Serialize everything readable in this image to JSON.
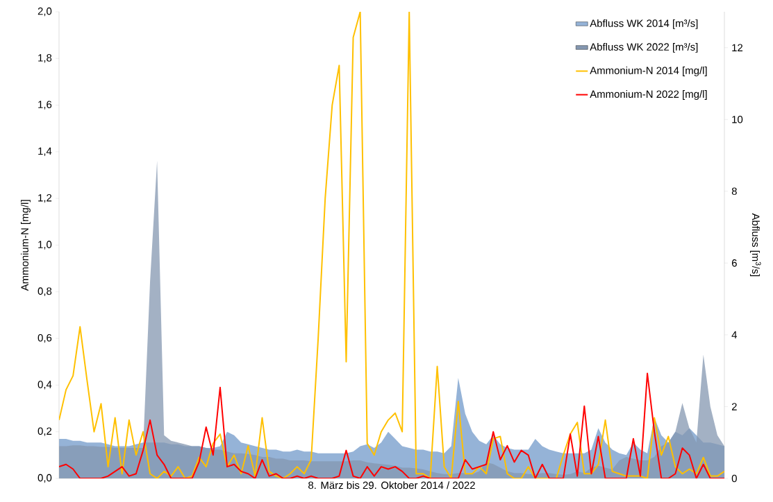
{
  "chart_data": {
    "type": "line",
    "xlabel": "8. März bis 29. Oktober 2014 / 2022",
    "ylabel": "Ammonium-N [mg/l]",
    "y2label": "Abfluss [m$^{3}$/s]",
    "categories": [
      null,
      null,
      null,
      null,
      null,
      null,
      null,
      null,
      null,
      null,
      null,
      null,
      null,
      null,
      null,
      null,
      null,
      null,
      null,
      null,
      null,
      null,
      null,
      null,
      null,
      null,
      null,
      null,
      null,
      null,
      null,
      null,
      null,
      null,
      null,
      null,
      null,
      null,
      null,
      null,
      null,
      null,
      null,
      null,
      null,
      null,
      null,
      null,
      null,
      null,
      null,
      null,
      null,
      null,
      null,
      null,
      null,
      null,
      null,
      null,
      null,
      null,
      null,
      null,
      null,
      null,
      null,
      null,
      null,
      null,
      null,
      null,
      null,
      null,
      null,
      null,
      null,
      null,
      null,
      null,
      null,
      null,
      null,
      null,
      null,
      null,
      null,
      null,
      null,
      null,
      null,
      null,
      null,
      null,
      null,
      null
    ],
    "series": [
      {
        "name": "Abfluss WK 2014 [m³/s]",
        "type": "area",
        "axis": "y2",
        "color": "#95b3d7",
        "values": [
          1.1,
          1.1,
          1.05,
          1.05,
          1.0,
          1.0,
          1.0,
          0.95,
          0.9,
          0.9,
          0.9,
          0.95,
          1.0,
          1.0,
          1.0,
          1.0,
          0.95,
          0.95,
          0.9,
          0.9,
          0.9,
          0.85,
          0.85,
          0.9,
          1.3,
          1.2,
          1.0,
          0.95,
          0.9,
          0.85,
          0.8,
          0.8,
          0.75,
          0.75,
          0.8,
          0.75,
          0.75,
          0.7,
          0.7,
          0.7,
          0.7,
          0.7,
          0.75,
          0.9,
          0.95,
          0.85,
          1.0,
          1.3,
          1.1,
          0.9,
          0.85,
          0.8,
          0.8,
          0.75,
          0.75,
          0.7,
          0.9,
          2.8,
          1.8,
          1.3,
          1.05,
          0.95,
          1.2,
          0.95,
          0.85,
          0.8,
          0.8,
          0.8,
          1.1,
          0.9,
          0.8,
          0.75,
          0.7,
          0.7,
          0.7,
          0.7,
          0.8,
          1.4,
          1.0,
          0.8,
          0.7,
          0.65,
          1.0,
          0.8,
          0.7,
          1.7,
          1.2,
          1.0,
          1.3,
          1.2,
          1.4,
          1.2,
          1.0,
          1.0,
          0.95,
          0.9
        ]
      },
      {
        "name": "Abfluss WK 2022 [m³/s]",
        "type": "area",
        "axis": "y2",
        "color": "#8497b0",
        "values": [
          0.9,
          0.9,
          0.92,
          0.92,
          0.9,
          0.9,
          0.88,
          0.88,
          0.85,
          0.85,
          0.85,
          0.85,
          0.85,
          5.5,
          8.85,
          1.2,
          1.05,
          1.0,
          0.95,
          0.9,
          0.9,
          0.85,
          0.8,
          0.8,
          0.75,
          0.7,
          0.7,
          0.68,
          0.65,
          0.6,
          0.6,
          0.55,
          0.55,
          0.5,
          0.5,
          0.5,
          0.48,
          0.48,
          0.48,
          0.48,
          0.48,
          0.48,
          0.5,
          0.5,
          0.45,
          0.42,
          0.4,
          0.38,
          0.35,
          0.3,
          0.3,
          0.28,
          0.25,
          0.2,
          0.15,
          0.12,
          0.12,
          0.15,
          0.15,
          0.12,
          0.2,
          0.45,
          0.4,
          0.3,
          0.2,
          0.15,
          0.15,
          0.12,
          0.12,
          0.15,
          0.15,
          0.12,
          0.1,
          0.12,
          0.2,
          0.15,
          0.3,
          0.35,
          0.3,
          0.25,
          0.5,
          0.6,
          0.55,
          0.5,
          0.5,
          0.6,
          0.9,
          1.0,
          1.3,
          2.1,
          1.4,
          1.0,
          3.45,
          2.0,
          1.2,
          0.9
        ]
      },
      {
        "name": "Ammonium-N 2014 [mg/l]",
        "color": "#ffc000",
        "values": [
          0.25,
          0.38,
          0.44,
          0.65,
          0.42,
          0.2,
          0.32,
          0.05,
          0.26,
          0.02,
          0.25,
          0.1,
          0.2,
          0.02,
          0.0,
          0.03,
          0.01,
          0.05,
          0.0,
          0.01,
          0.09,
          0.05,
          0.15,
          0.19,
          0.05,
          0.1,
          0.02,
          0.14,
          0.01,
          0.26,
          0.03,
          0.01,
          0.0,
          0.02,
          0.05,
          0.02,
          0.08,
          0.6,
          1.2,
          1.6,
          1.77,
          0.5,
          1.89,
          2.0,
          0.15,
          0.1,
          0.2,
          0.25,
          0.28,
          0.2,
          2.0,
          0.02,
          0.02,
          0.0,
          0.48,
          0.05,
          0.0,
          0.33,
          0.02,
          0.02,
          0.05,
          0.02,
          0.17,
          0.18,
          0.02,
          0.0,
          0.0,
          0.05,
          0.0,
          0.0,
          0.0,
          0.0,
          0.1,
          0.19,
          0.24,
          0.02,
          0.02,
          0.06,
          0.25,
          0.03,
          0.02,
          0.01,
          0.01,
          0.01,
          0.0,
          0.26,
          0.1,
          0.18,
          0.05,
          0.02,
          0.04,
          0.02,
          0.09,
          0.01,
          0.01,
          0.03
        ]
      },
      {
        "name": "Ammonium-N 2022 [mg/l]",
        "color": "#ff0000",
        "values": [
          0.05,
          0.06,
          0.04,
          0.0,
          0.0,
          0.0,
          0.0,
          0.01,
          0.03,
          0.05,
          0.01,
          0.02,
          0.12,
          0.25,
          0.1,
          0.06,
          0.0,
          0.0,
          0.0,
          0.0,
          0.07,
          0.22,
          0.1,
          0.39,
          0.05,
          0.06,
          0.03,
          0.02,
          0.0,
          0.08,
          0.01,
          0.02,
          0.0,
          0.0,
          0.01,
          0.0,
          0.01,
          0.0,
          0.0,
          0.0,
          0.01,
          0.12,
          0.01,
          0.0,
          0.05,
          0.01,
          0.05,
          0.04,
          0.05,
          0.03,
          0.0,
          0.0,
          0.01,
          0.0,
          0.0,
          0.0,
          0.0,
          0.0,
          0.08,
          0.04,
          0.05,
          0.06,
          0.2,
          0.08,
          0.14,
          0.07,
          0.12,
          0.1,
          0.0,
          0.06,
          0.0,
          0.0,
          0.0,
          0.19,
          0.01,
          0.31,
          0.02,
          0.18,
          0.0,
          0.0,
          0.0,
          0.0,
          0.17,
          0.01,
          0.45,
          0.2,
          0.0,
          0.0,
          0.02,
          0.13,
          0.1,
          0.0,
          0.06,
          0.0,
          0.0,
          0.0
        ]
      }
    ],
    "ylim": [
      0,
      2
    ],
    "yticks": [
      {
        "value": 0,
        "label": "0,0"
      },
      {
        "value": 0.2,
        "label": "0,2"
      },
      {
        "value": 0.4,
        "label": "0,4"
      },
      {
        "value": 0.6,
        "label": "0,6"
      },
      {
        "value": 0.8,
        "label": "0,8"
      },
      {
        "value": 1.0,
        "label": "1,0"
      },
      {
        "value": 1.2,
        "label": "1,2"
      },
      {
        "value": 1.4,
        "label": "1,4"
      },
      {
        "value": 1.6,
        "label": "1,6"
      },
      {
        "value": 1.8,
        "label": "1,8"
      },
      {
        "value": 2.0,
        "label": "2,0"
      }
    ],
    "y2lim": [
      0,
      13
    ],
    "y2ticks": [
      0,
      2,
      4,
      6,
      8,
      10,
      12
    ],
    "legend": "top right",
    "grid": false
  }
}
